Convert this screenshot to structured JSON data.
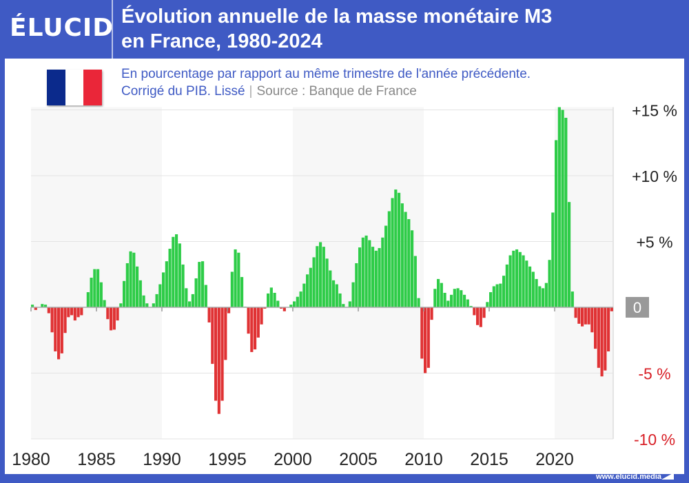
{
  "brand": {
    "logo": "ÉLUCID",
    "footer_url": "www.elucid.media",
    "color": "#3f5ac4"
  },
  "header": {
    "title_line1": "Évolution annuelle de la masse monétaire M3",
    "title_line2": "en France, 1980-2024",
    "subtitle_line1": "En pourcentage par rapport au même trimestre de l'année précédente.",
    "subtitle_note": "Corrigé du PIB. Lissé",
    "separator": "|",
    "source": "Source : Banque de France"
  },
  "flag": {
    "name": "france-flag-icon",
    "colors": [
      "#0b2a8c",
      "#ffffff",
      "#ea2639"
    ]
  },
  "chart_data": {
    "type": "bar",
    "frequency": "quarterly",
    "x_start": "1980-Q1",
    "x_end": "2024-Q2",
    "x_ticks": [
      "1980",
      "1985",
      "1990",
      "1995",
      "2000",
      "2005",
      "2010",
      "2015",
      "2020"
    ],
    "y_ticks": [
      {
        "value": 15,
        "label": "+15 %"
      },
      {
        "value": 10,
        "label": "+10 %"
      },
      {
        "value": 5,
        "label": "+5 %"
      },
      {
        "value": 0,
        "label": "0"
      },
      {
        "value": -5,
        "label": "-5 %"
      },
      {
        "value": -10,
        "label": "-10 %"
      }
    ],
    "ylim": [
      -10,
      15
    ],
    "y_unit": "%",
    "grid": true,
    "positive_color": "#2ecc48",
    "negative_color": "#e03234",
    "values": [
      0.2,
      -0.2,
      0,
      0.25,
      0.2,
      -0.45,
      -1.9,
      -3.35,
      -3.95,
      -3.5,
      -1.95,
      -0.75,
      -0.6,
      -1.0,
      -0.75,
      -0.6,
      0,
      1.15,
      2.25,
      2.9,
      2.9,
      1.9,
      0.55,
      -0.9,
      -1.75,
      -1.7,
      -1.0,
      0.3,
      2.0,
      3.35,
      4.25,
      4.15,
      3.1,
      2.05,
      0.9,
      0.3,
      0,
      0.3,
      1.0,
      1.75,
      2.65,
      3.5,
      4.45,
      5.35,
      5.55,
      4.85,
      3.25,
      1.45,
      0.45,
      1.0,
      2.2,
      3.45,
      3.5,
      1.7,
      -1.15,
      -4.3,
      -7.1,
      -8.1,
      -7.1,
      -4.0,
      -0.45,
      2.7,
      4.4,
      4.15,
      2.3,
      0.05,
      -2.0,
      -3.4,
      -3.2,
      -2.3,
      -1.3,
      -0.1,
      1.05,
      1.5,
      1.1,
      0.5,
      -0.1,
      -0.3,
      0,
      0.2,
      0.45,
      0.8,
      1.2,
      1.8,
      2.5,
      3.0,
      3.8,
      4.65,
      4.95,
      4.6,
      3.7,
      2.8,
      2.05,
      1.75,
      1.05,
      0.25,
      0,
      0.45,
      1.9,
      3.35,
      4.55,
      5.3,
      5.45,
      5.1,
      4.6,
      4.3,
      4.5,
      5.3,
      6.2,
      7.3,
      8.3,
      8.95,
      8.7,
      7.9,
      7.25,
      6.7,
      5.85,
      3.9,
      0.7,
      -3.9,
      -5.0,
      -4.6,
      -0.95,
      1.4,
      2.15,
      1.85,
      1.1,
      0.5,
      0.95,
      1.4,
      1.45,
      1.3,
      0.95,
      0.6,
      0.1,
      -0.6,
      -1.35,
      -1.5,
      -0.8,
      0.4,
      1.15,
      1.6,
      1.75,
      1.8,
      2.4,
      3.25,
      3.95,
      4.3,
      4.4,
      4.2,
      3.95,
      3.55,
      3.1,
      2.7,
      2.15,
      1.6,
      1.45,
      1.85,
      3.6,
      7.2,
      12.7,
      15.3,
      15.0,
      14.4,
      8.0,
      1.2,
      -0.8,
      -1.25,
      -1.45,
      -1.3,
      -1.3,
      -1.9,
      -3.15,
      -4.6,
      -5.25,
      -4.8,
      -3.35,
      -0.3
    ]
  }
}
